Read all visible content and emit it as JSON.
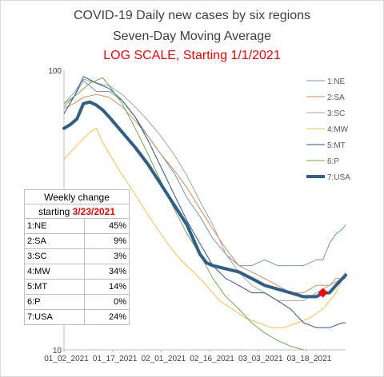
{
  "chart_data": {
    "type": "line",
    "title": "COVID-19 Daily new cases by six regions",
    "subtitle": "Seven-Day Moving Average",
    "subtitle2": "LOG SCALE, Starting 1/1/2021",
    "yscale": "log",
    "ylim": [
      10,
      100
    ],
    "ytick_labels": [
      "100",
      "10"
    ],
    "x_ticks": [
      "01_02_2021",
      "01_17_2021",
      "02_01_2021",
      "02_16_2021",
      "03_03_2021",
      "03_18_2021"
    ],
    "x_range": [
      "01_02_2021",
      "03_30_2021"
    ],
    "legend_position": "right",
    "grid": false,
    "series": [
      {
        "name": "1:NE",
        "color": "#6d96c4",
        "width": 1,
        "x": [
          0,
          3,
          6,
          10,
          14,
          18,
          22,
          26,
          30,
          34,
          38,
          42,
          46,
          50,
          54,
          58,
          62,
          66,
          70,
          74,
          78,
          80,
          82,
          84,
          86,
          87
        ],
        "y": [
          74,
          80,
          92,
          84,
          84,
          78,
          68,
          58,
          50,
          43,
          35,
          30,
          25,
          22,
          20,
          20,
          21,
          20,
          20,
          20,
          21,
          21,
          24,
          26,
          27,
          28
        ]
      },
      {
        "name": "2:SA",
        "color": "#e08b4f",
        "width": 1,
        "x": [
          0,
          3,
          6,
          10,
          14,
          18,
          22,
          26,
          30,
          34,
          38,
          42,
          46,
          50,
          54,
          58,
          62,
          66,
          70,
          74,
          78,
          82,
          84,
          86,
          87
        ],
        "y": [
          73,
          76,
          80,
          82,
          80,
          74,
          66,
          58,
          50,
          44,
          38,
          32,
          27,
          23,
          20,
          19,
          18,
          17,
          16,
          16,
          17,
          17,
          18,
          18,
          18
        ]
      },
      {
        "name": "3:SC",
        "color": "#a5a5a5",
        "width": 1,
        "x": [
          0,
          3,
          6,
          10,
          14,
          18,
          22,
          26,
          30,
          34,
          38,
          42,
          46,
          50,
          54,
          58,
          62,
          66,
          70,
          74,
          78,
          82,
          86,
          87
        ],
        "y": [
          76,
          83,
          93,
          90,
          88,
          82,
          74,
          66,
          58,
          50,
          42,
          34,
          28,
          22,
          19,
          17,
          16,
          15,
          15,
          15,
          16,
          17,
          18,
          19
        ]
      },
      {
        "name": "4:MW",
        "color": "#f5c03a",
        "width": 1,
        "x": [
          0,
          4,
          8,
          10,
          12,
          16,
          20,
          24,
          28,
          32,
          36,
          40,
          44,
          48,
          52,
          56,
          60,
          64,
          68,
          72,
          76,
          80,
          84,
          87
        ],
        "y": [
          48,
          54,
          60,
          62,
          55,
          46,
          39,
          33,
          28,
          24,
          21,
          19,
          17,
          15,
          14,
          13,
          12.5,
          12,
          12,
          12.5,
          13,
          14,
          16,
          19
        ]
      },
      {
        "name": "5:MT",
        "color": "#2f5597",
        "width": 1,
        "x": [
          0,
          3,
          6,
          10,
          14,
          18,
          22,
          26,
          30,
          34,
          38,
          42,
          46,
          50,
          54,
          58,
          62,
          66,
          70,
          74,
          78,
          82,
          86,
          87
        ],
        "y": [
          70,
          80,
          95,
          90,
          86,
          78,
          68,
          56,
          45,
          36,
          29,
          24,
          20,
          18,
          17,
          16,
          16,
          15,
          14,
          12.5,
          12,
          12,
          12.5,
          12.5
        ]
      },
      {
        "name": "6:P",
        "color": "#70ad47",
        "width": 1,
        "x": [
          0,
          4,
          8,
          12,
          14,
          18,
          22,
          26,
          30,
          34,
          38,
          42,
          46,
          50,
          54,
          58,
          62,
          66,
          70,
          74
        ],
        "y": [
          76,
          82,
          90,
          94,
          88,
          76,
          62,
          50,
          40,
          32,
          26,
          22,
          18,
          15.5,
          14,
          12.5,
          11.5,
          10.8,
          10.3,
          10
        ]
      },
      {
        "name": "7:USA",
        "color": "#2e5f8a",
        "width": 4,
        "x": [
          0,
          2,
          4,
          6,
          8,
          10,
          12,
          14,
          18,
          22,
          26,
          30,
          34,
          38,
          42,
          44,
          46,
          50,
          54,
          58,
          62,
          66,
          70,
          74,
          78,
          80,
          82,
          84,
          86,
          87
        ],
        "y": [
          62,
          64,
          67,
          76,
          77,
          75,
          72,
          68,
          60,
          53,
          46,
          39,
          33,
          28,
          22,
          20.5,
          20,
          19.5,
          19,
          18,
          17,
          16.5,
          16,
          15.5,
          15.5,
          16,
          16,
          17,
          18,
          18.5
        ]
      }
    ],
    "marker": {
      "series": "7:USA",
      "x": 80,
      "y": 16,
      "color": "#ff0000"
    }
  },
  "weekly_table": {
    "header_line1": "Weekly change",
    "header_prefix": "starting ",
    "header_date": "3/23/2021",
    "rows": [
      {
        "label": "1:NE",
        "value": "45%"
      },
      {
        "label": "2:SA",
        "value": "9%"
      },
      {
        "label": "3:SC",
        "value": "3%"
      },
      {
        "label": "4:MW",
        "value": "34%"
      },
      {
        "label": "5:MT",
        "value": "14%"
      },
      {
        "label": "6:P",
        "value": "0%"
      },
      {
        "label": "7:USA",
        "value": "24%"
      }
    ]
  }
}
